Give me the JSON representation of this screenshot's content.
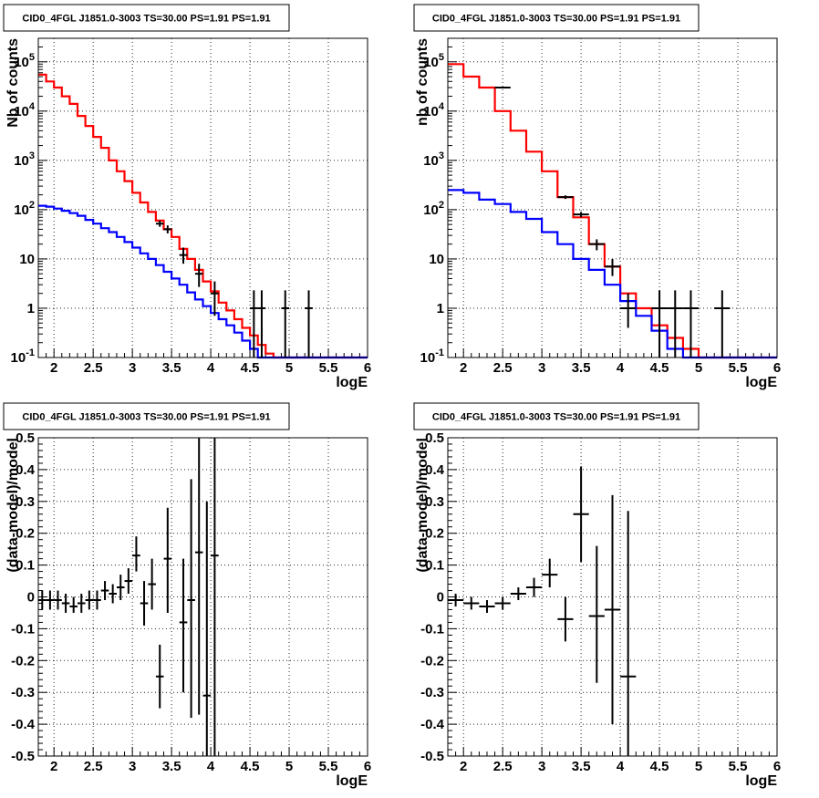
{
  "colors": {
    "model_total": "#ff0000",
    "model_total_edge": "#000000",
    "model_source": "#0000ff",
    "data": "#000000"
  },
  "chart_data": [
    {
      "type": "histogram",
      "panel": "top-left",
      "title": "CID0_4FGL J1851.0-3003 TS=30.00 PS=1.91 PS=1.91",
      "xlabel": "logE",
      "ylabel": "Nb of counts",
      "log_y": true,
      "grid": true,
      "xlim": [
        1.8,
        6
      ],
      "ylim": [
        0.1,
        300000
      ],
      "xticks": [
        2,
        2.5,
        3,
        3.5,
        4,
        4.5,
        5,
        5.5,
        6
      ],
      "xtick_labels": [
        "2",
        "2.5",
        "3",
        "3.5",
        "4",
        "4.5",
        "5",
        "5.5",
        "6"
      ],
      "yticks": [
        0.1,
        1,
        10,
        100,
        1000,
        10000,
        100000
      ],
      "ytick_labels": [
        "10^-1",
        "1",
        "10",
        "10^2",
        "10^3",
        "10^4",
        "10^5"
      ],
      "bin_edges": [
        1.8,
        1.9,
        2.0,
        2.1,
        2.2,
        2.3,
        2.4,
        2.5,
        2.6,
        2.7,
        2.8,
        2.9,
        3.0,
        3.1,
        3.2,
        3.3,
        3.4,
        3.5,
        3.6,
        3.7,
        3.8,
        3.9,
        4.0,
        4.1,
        4.2,
        4.3,
        4.4,
        4.5,
        4.6,
        4.7,
        4.8,
        4.9,
        5.0,
        5.1,
        5.2,
        5.3,
        5.4,
        5.5,
        5.6,
        5.7,
        5.8,
        5.9,
        6.0
      ],
      "series": [
        {
          "role": "total",
          "color": "#ff0000",
          "values": [
            55000,
            40000,
            30000,
            20000,
            14000,
            8000,
            5000,
            3000,
            1800,
            1000,
            600,
            380,
            220,
            140,
            90,
            60,
            40,
            28,
            16,
            10,
            6,
            3.5,
            2.2,
            1.3,
            0.9,
            0.6,
            0.4,
            0.28,
            0.18,
            0.12,
            0.1,
            0.1,
            0.1,
            0.1,
            0.1,
            0.1,
            0.1,
            0.1,
            0.1,
            0.1,
            0.1,
            0.1
          ]
        },
        {
          "role": "source",
          "color": "#0000ff",
          "values": [
            120,
            115,
            105,
            95,
            85,
            75,
            62,
            52,
            42,
            35,
            28,
            22,
            17,
            13,
            10,
            7.5,
            5.5,
            4,
            3,
            2.1,
            1.5,
            1.1,
            0.8,
            0.6,
            0.45,
            0.32,
            0.22,
            0.15,
            0.1,
            0.1,
            0.1,
            0.1,
            0.1,
            0.1,
            0.1,
            0.1,
            0.1,
            0.1,
            0.1,
            0.1,
            0.1,
            0.1
          ]
        }
      ],
      "points": [
        {
          "x": 3.35,
          "y": 52,
          "xerr": 0.05,
          "ylo": 45,
          "yhi": 60
        },
        {
          "x": 3.45,
          "y": 40,
          "xerr": 0.05,
          "ylo": 33,
          "yhi": 48
        },
        {
          "x": 3.65,
          "y": 12,
          "xerr": 0.05,
          "ylo": 8,
          "yhi": 17
        },
        {
          "x": 3.85,
          "y": 5,
          "xerr": 0.05,
          "ylo": 2.7,
          "yhi": 8
        },
        {
          "x": 4.05,
          "y": 2,
          "xerr": 0.05,
          "ylo": 0.7,
          "yhi": 3.5
        },
        {
          "x": 4.55,
          "y": 1,
          "xerr": 0.05,
          "ylo": 0.1,
          "yhi": 2.3
        },
        {
          "x": 4.65,
          "y": 1,
          "xerr": 0.05,
          "ylo": 0.1,
          "yhi": 2.3
        },
        {
          "x": 4.95,
          "y": 1,
          "xerr": 0.05,
          "ylo": 0.1,
          "yhi": 2.3
        },
        {
          "x": 5.25,
          "y": 1,
          "xerr": 0.05,
          "ylo": 0.1,
          "yhi": 2.3
        }
      ]
    },
    {
      "type": "histogram",
      "panel": "top-right",
      "title": "CID0_4FGL J1851.0-3003 TS=30.00 PS=1.91 PS=1.91",
      "xlabel": "logE",
      "ylabel": "nb of counts",
      "log_y": true,
      "grid": true,
      "xlim": [
        1.8,
        6
      ],
      "ylim": [
        0.1,
        300000
      ],
      "xticks": [
        2,
        2.5,
        3,
        3.5,
        4,
        4.5,
        5,
        5.5,
        6
      ],
      "xtick_labels": [
        "2",
        "2.5",
        "3",
        "3.5",
        "4",
        "4.5",
        "5",
        "5.5",
        "6"
      ],
      "yticks": [
        0.1,
        1,
        10,
        100,
        1000,
        10000,
        100000
      ],
      "ytick_labels": [
        "10^-1",
        "1",
        "10",
        "10^2",
        "10^3",
        "10^4",
        "10^5"
      ],
      "bin_edges": [
        1.8,
        2.0,
        2.2,
        2.4,
        2.6,
        2.8,
        3.0,
        3.2,
        3.4,
        3.6,
        3.8,
        4.0,
        4.2,
        4.4,
        4.6,
        4.8,
        5.0,
        5.2,
        5.4,
        5.6,
        5.8,
        6.0
      ],
      "series": [
        {
          "role": "total",
          "color": "#ff0000",
          "values": [
            90000,
            50000,
            30000,
            10000,
            4000,
            1500,
            600,
            180,
            70,
            20,
            7,
            2,
            1,
            0.45,
            0.25,
            0.15,
            0.1,
            0.1,
            0.1,
            0.1,
            0.1
          ]
        },
        {
          "role": "source",
          "color": "#0000ff",
          "values": [
            250,
            220,
            160,
            130,
            90,
            65,
            35,
            20,
            10,
            6,
            3,
            1.4,
            0.7,
            0.35,
            0.15,
            0.1,
            0.1,
            0.1,
            0.1,
            0.1,
            0.1
          ]
        }
      ],
      "points": [
        {
          "x": 2.5,
          "y": 30000,
          "xerr": 0.1,
          "ylo": 29000,
          "yhi": 31000
        },
        {
          "x": 3.3,
          "y": 180,
          "xerr": 0.1,
          "ylo": 165,
          "yhi": 195
        },
        {
          "x": 3.5,
          "y": 80,
          "xerr": 0.1,
          "ylo": 70,
          "yhi": 90
        },
        {
          "x": 3.7,
          "y": 20,
          "xerr": 0.1,
          "ylo": 15,
          "yhi": 25
        },
        {
          "x": 3.9,
          "y": 7,
          "xerr": 0.1,
          "ylo": 4.5,
          "yhi": 10
        },
        {
          "x": 4.1,
          "y": 1,
          "xerr": 0.1,
          "ylo": 0.4,
          "yhi": 2
        },
        {
          "x": 4.5,
          "y": 1,
          "xerr": 0.1,
          "ylo": 0.1,
          "yhi": 2.3
        },
        {
          "x": 4.7,
          "y": 1,
          "xerr": 0.1,
          "ylo": 0.1,
          "yhi": 2.3
        },
        {
          "x": 4.9,
          "y": 1,
          "xerr": 0.1,
          "ylo": 0.1,
          "yhi": 2.3
        },
        {
          "x": 5.3,
          "y": 1,
          "xerr": 0.1,
          "ylo": 0.1,
          "yhi": 2.3
        }
      ]
    },
    {
      "type": "scatter",
      "panel": "bottom-left",
      "title": "CID0_4FGL J1851.0-3003 TS=30.00 PS=1.91 PS=1.91",
      "xlabel": "logE",
      "ylabel": "(data-model)/model",
      "log_y": false,
      "grid": true,
      "xlim": [
        1.8,
        6
      ],
      "ylim": [
        -0.5,
        0.5
      ],
      "xticks": [
        2,
        2.5,
        3,
        3.5,
        4,
        4.5,
        5,
        5.5,
        6
      ],
      "xtick_labels": [
        "2",
        "2.5",
        "3",
        "3.5",
        "4",
        "4.5",
        "5",
        "5.5",
        "6"
      ],
      "yticks": [
        -0.5,
        -0.4,
        -0.3,
        -0.2,
        -0.1,
        0,
        0.1,
        0.2,
        0.3,
        0.4,
        0.5
      ],
      "ytick_labels": [
        "-0.5",
        "-0.4",
        "-0.3",
        "-0.2",
        "-0.1",
        "0",
        "0.1",
        "0.2",
        "0.3",
        "0.4",
        "0.5"
      ],
      "points": [
        {
          "x": 1.85,
          "y": -0.01,
          "xerr": 0.05,
          "ylo": -0.04,
          "yhi": 0.02
        },
        {
          "x": 1.95,
          "y": -0.01,
          "xerr": 0.05,
          "ylo": -0.04,
          "yhi": 0.02
        },
        {
          "x": 2.05,
          "y": -0.01,
          "xerr": 0.05,
          "ylo": -0.04,
          "yhi": 0.02
        },
        {
          "x": 2.15,
          "y": -0.02,
          "xerr": 0.05,
          "ylo": -0.05,
          "yhi": 0.01
        },
        {
          "x": 2.25,
          "y": -0.03,
          "xerr": 0.05,
          "ylo": -0.05,
          "yhi": 0.0
        },
        {
          "x": 2.35,
          "y": -0.02,
          "xerr": 0.05,
          "ylo": -0.05,
          "yhi": 0.01
        },
        {
          "x": 2.45,
          "y": -0.01,
          "xerr": 0.05,
          "ylo": -0.04,
          "yhi": 0.02
        },
        {
          "x": 2.55,
          "y": -0.01,
          "xerr": 0.05,
          "ylo": -0.04,
          "yhi": 0.02
        },
        {
          "x": 2.65,
          "y": 0.02,
          "xerr": 0.05,
          "ylo": -0.01,
          "yhi": 0.05
        },
        {
          "x": 2.75,
          "y": 0.01,
          "xerr": 0.05,
          "ylo": -0.02,
          "yhi": 0.04
        },
        {
          "x": 2.85,
          "y": 0.03,
          "xerr": 0.05,
          "ylo": -0.01,
          "yhi": 0.07
        },
        {
          "x": 2.95,
          "y": 0.05,
          "xerr": 0.05,
          "ylo": 0.01,
          "yhi": 0.09
        },
        {
          "x": 3.05,
          "y": 0.13,
          "xerr": 0.05,
          "ylo": 0.08,
          "yhi": 0.19
        },
        {
          "x": 3.15,
          "y": -0.02,
          "xerr": 0.05,
          "ylo": -0.09,
          "yhi": 0.05
        },
        {
          "x": 3.25,
          "y": 0.04,
          "xerr": 0.05,
          "ylo": -0.04,
          "yhi": 0.12
        },
        {
          "x": 3.35,
          "y": -0.25,
          "xerr": 0.05,
          "ylo": -0.35,
          "yhi": -0.15
        },
        {
          "x": 3.45,
          "y": 0.12,
          "xerr": 0.05,
          "ylo": -0.05,
          "yhi": 0.28
        },
        {
          "x": 3.65,
          "y": -0.08,
          "xerr": 0.05,
          "ylo": -0.3,
          "yhi": 0.12
        },
        {
          "x": 3.75,
          "y": -0.01,
          "xerr": 0.05,
          "ylo": -0.38,
          "yhi": 0.37
        },
        {
          "x": 3.85,
          "y": 0.14,
          "xerr": 0.05,
          "ylo": -0.37,
          "yhi": 0.5
        },
        {
          "x": 3.95,
          "y": -0.31,
          "xerr": 0.05,
          "ylo": -0.5,
          "yhi": 0.3
        },
        {
          "x": 4.05,
          "y": 0.13,
          "xerr": 0.05,
          "ylo": -0.5,
          "yhi": 0.5
        }
      ]
    },
    {
      "type": "scatter",
      "panel": "bottom-right",
      "title": "CID0_4FGL J1851.0-3003 TS=30.00 PS=1.91 PS=1.91",
      "xlabel": "logE",
      "ylabel": "(data-model)/model",
      "log_y": false,
      "grid": true,
      "xlim": [
        1.8,
        6
      ],
      "ylim": [
        -0.5,
        0.5
      ],
      "xticks": [
        2,
        2.5,
        3,
        3.5,
        4,
        4.5,
        5,
        5.5,
        6
      ],
      "xtick_labels": [
        "2",
        "2.5",
        "3",
        "3.5",
        "4",
        "4.5",
        "5",
        "5.5",
        "6"
      ],
      "yticks": [
        -0.5,
        -0.4,
        -0.3,
        -0.2,
        -0.1,
        0,
        0.1,
        0.2,
        0.3,
        0.4,
        0.5
      ],
      "ytick_labels": [
        "-0.5",
        "-0.4",
        "-0.3",
        "-0.2",
        "-0.1",
        "0",
        "0.1",
        "0.2",
        "0.3",
        "0.4",
        "0.5"
      ],
      "points": [
        {
          "x": 1.9,
          "y": -0.01,
          "xerr": 0.1,
          "ylo": -0.03,
          "yhi": 0.01
        },
        {
          "x": 2.1,
          "y": -0.02,
          "xerr": 0.1,
          "ylo": -0.04,
          "yhi": 0.0
        },
        {
          "x": 2.3,
          "y": -0.03,
          "xerr": 0.1,
          "ylo": -0.05,
          "yhi": -0.01
        },
        {
          "x": 2.5,
          "y": -0.02,
          "xerr": 0.1,
          "ylo": -0.04,
          "yhi": 0.0
        },
        {
          "x": 2.7,
          "y": 0.01,
          "xerr": 0.1,
          "ylo": -0.01,
          "yhi": 0.03
        },
        {
          "x": 2.9,
          "y": 0.03,
          "xerr": 0.1,
          "ylo": 0.0,
          "yhi": 0.06
        },
        {
          "x": 3.1,
          "y": 0.07,
          "xerr": 0.1,
          "ylo": 0.03,
          "yhi": 0.12
        },
        {
          "x": 3.3,
          "y": -0.07,
          "xerr": 0.1,
          "ylo": -0.14,
          "yhi": 0.0
        },
        {
          "x": 3.5,
          "y": 0.26,
          "xerr": 0.1,
          "ylo": 0.11,
          "yhi": 0.41
        },
        {
          "x": 3.7,
          "y": -0.06,
          "xerr": 0.1,
          "ylo": -0.27,
          "yhi": 0.16
        },
        {
          "x": 3.9,
          "y": -0.04,
          "xerr": 0.1,
          "ylo": -0.4,
          "yhi": 0.32
        },
        {
          "x": 4.1,
          "y": -0.25,
          "xerr": 0.1,
          "ylo": -0.5,
          "yhi": 0.27
        }
      ]
    }
  ]
}
